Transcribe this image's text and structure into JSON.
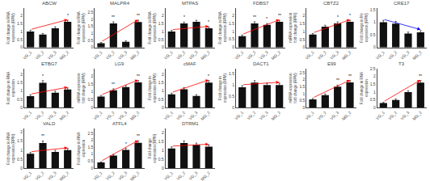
{
  "chart_data": [
    {
      "type": "bar",
      "title": "ABCW",
      "ylabel": "Fold change in RNA\nexpression (RPM)",
      "categories": [
        "VG_1",
        "VG_2",
        "VG_3",
        "MG_2"
      ],
      "values": [
        1.0,
        0.8,
        1.2,
        1.6
      ],
      "errors": [
        0.08,
        0.07,
        0.09,
        0.1
      ],
      "color": "#111111",
      "ylim": [
        0,
        2.465
      ],
      "yticks": [
        0,
        0.5,
        1,
        1.5,
        2
      ],
      "grid": false,
      "annotations": [
        {
          "category": "MG_2",
          "text": "*"
        }
      ],
      "trend": {
        "values": [
          1.12,
          1.74
        ],
        "color": "red"
      }
    },
    {
      "type": "bar",
      "title": "MALPR4",
      "ylabel": "Fold change in RNA\nexpression (RPM)",
      "categories": [
        "VG_1",
        "VG_2",
        "VG_3",
        "MG_2"
      ],
      "values": [
        0.3,
        1.7,
        0.4,
        1.8
      ],
      "errors": [
        0.05,
        0.12,
        0.06,
        0.13
      ],
      "color": "#111111",
      "ylim": [
        0,
        2.7985
      ],
      "yticks": [
        0,
        0.5,
        1,
        1.5,
        2,
        2.5
      ],
      "grid": false,
      "annotations": [
        {
          "category": "VG_2",
          "text": "**"
        },
        {
          "category": "MG_2",
          "text": "**"
        }
      ],
      "trend": {
        "values": [
          0.39,
          1.97
        ],
        "color": "red"
      }
    },
    {
      "type": "bar",
      "title": "MTPAS",
      "ylabel": "Fold change in RNA\nexpression (RPM)",
      "categories": [
        "VG_1",
        "VG_2",
        "VG_3",
        "MG_2"
      ],
      "values": [
        1.0,
        1.5,
        1.6,
        1.2
      ],
      "errors": [
        0.07,
        0.09,
        0.1,
        0.08
      ],
      "color": "#111111",
      "ylim": [
        0,
        2.465
      ],
      "yticks": [
        0,
        0.5,
        1,
        1.5,
        2
      ],
      "grid": false,
      "annotations": [
        {
          "category": "VG_2",
          "text": "*"
        },
        {
          "category": "MG_2",
          "text": "*"
        }
      ],
      "trend": {
        "values": [
          1.11,
          1.32
        ],
        "color": "red"
      }
    },
    {
      "type": "bar",
      "title": "FDBS7",
      "ylabel": "Fold change in RNA\nexpression (RPM)",
      "categories": [
        "VG_1",
        "VG_2",
        "VG_3",
        "MG_2"
      ],
      "values": [
        0.7,
        1.5,
        1.4,
        1.6
      ],
      "errors": [
        0.07,
        0.1,
        0.09,
        0.09
      ],
      "color": "#111111",
      "ylim": [
        0,
        2.4505
      ],
      "yticks": [
        0,
        0.5,
        1,
        1.5,
        2
      ],
      "grid": false,
      "annotations": [
        {
          "category": "VG_2",
          "text": "**"
        },
        {
          "category": "VG_3",
          "text": "*"
        },
        {
          "category": "MG_2",
          "text": "**"
        }
      ],
      "trend": {
        "values": [
          0.81,
          1.73
        ],
        "color": "red"
      }
    },
    {
      "type": "bar",
      "title": "CBTZ2",
      "ylabel": "miRNA expression\nfold change (RPM)",
      "categories": [
        "VG_1",
        "VG_2",
        "VG_3",
        "MG_2"
      ],
      "values": [
        0.8,
        1.3,
        1.5,
        1.6
      ],
      "errors": [
        0.07,
        0.09,
        0.1,
        0.1
      ],
      "color": "#111111",
      "ylim": [
        0,
        2.465
      ],
      "yticks": [
        0,
        0.5,
        1,
        1.5,
        2
      ],
      "grid": false,
      "annotations": [
        {
          "category": "VG_3",
          "text": "*"
        },
        {
          "category": "MG_2",
          "text": "*"
        }
      ],
      "trend": {
        "values": [
          0.91,
          1.74
        ],
        "color": "red"
      }
    },
    {
      "type": "bar",
      "title": "CRE17",
      "ylabel": "Fold change in Mc\nexpression (RPM)",
      "categories": [
        "VG_1",
        "VG_2",
        "VG_3",
        "MG_2"
      ],
      "values": [
        1.0,
        0.95,
        0.55,
        0.6
      ],
      "errors": [
        0.08,
        0.09,
        0.06,
        0.07
      ],
      "color": "#111111",
      "ylim": [
        0,
        1.566
      ],
      "yticks": [
        0,
        0.5,
        1,
        1.5
      ],
      "grid": false,
      "trend": {
        "values": [
          1.12,
          0.71
        ],
        "color": "blue"
      }
    },
    {
      "type": "bar",
      "title": "ETBG7",
      "ylabel": "Fold change in RNA\nexpression",
      "categories": [
        "VG_1",
        "VG_2",
        "VG_3",
        "MG_2"
      ],
      "values": [
        0.7,
        1.5,
        0.9,
        1.1
      ],
      "errors": [
        0.08,
        0.13,
        0.1,
        0.09
      ],
      "color": "#111111",
      "ylim": [
        0,
        2.3635
      ],
      "yticks": [
        0,
        0.5,
        1,
        1.5,
        2
      ],
      "grid": false,
      "annotations": [
        {
          "category": "VG_2",
          "text": "*"
        }
      ],
      "trend": {
        "values": [
          0.82,
          1.23
        ],
        "color": "red"
      }
    },
    {
      "type": "bar",
      "title": "LG9",
      "ylabel": "miRNA expression\nfold change (RPM)",
      "categories": [
        "VG_1",
        "VG_2",
        "VG_3",
        "MG_2"
      ],
      "values": [
        0.7,
        1.1,
        1.3,
        1.6
      ],
      "errors": [
        0.07,
        0.09,
        0.1,
        0.11
      ],
      "color": "#111111",
      "ylim": [
        0,
        2.4795
      ],
      "yticks": [
        0,
        0.5,
        1,
        1.5,
        2
      ],
      "grid": false,
      "annotations": [
        {
          "category": "VG_2",
          "text": "**"
        },
        {
          "category": "MG_2",
          "text": "**"
        }
      ],
      "trend": {
        "values": [
          0.81,
          1.75
        ],
        "color": "red"
      }
    },
    {
      "type": "bar",
      "title": "cMAF",
      "ylabel": "Fold change in\nexpression (RPM)",
      "categories": [
        "VG_1",
        "VG_2",
        "VG_3",
        "MG_2"
      ],
      "values": [
        0.8,
        1.1,
        0.7,
        1.5
      ],
      "errors": [
        0.07,
        0.1,
        0.08,
        0.12
      ],
      "color": "#111111",
      "ylim": [
        0,
        2.349
      ],
      "yticks": [
        0,
        0.5,
        1,
        1.5,
        2
      ],
      "grid": false,
      "annotations": [
        {
          "category": "MG_2",
          "text": "*"
        }
      ],
      "trend": {
        "values": [
          0.91,
          1.66
        ],
        "color": "red"
      }
    },
    {
      "type": "bar",
      "title": "DACT1",
      "ylabel": "Fold change in\nexpression (RPM)",
      "categories": [
        "VG_1",
        "VG_2",
        "VG_3",
        "MG_2"
      ],
      "values": [
        0.9,
        1.1,
        1.0,
        1.0
      ],
      "errors": [
        0.07,
        0.09,
        0.08,
        0.08
      ],
      "color": "#111111",
      "ylim": [
        0,
        1.7255
      ],
      "yticks": [
        0,
        0.5,
        1,
        1.5
      ],
      "grid": false,
      "trend": {
        "values": [
          1.01,
          1.12
        ],
        "color": "red"
      }
    },
    {
      "type": "bar",
      "title": "E99",
      "ylabel": "miRNA expression\nfold change (RPM)",
      "categories": [
        "VG_1",
        "VG_2",
        "VG_3",
        "MG_2"
      ],
      "values": [
        0.6,
        0.9,
        1.5,
        1.8
      ],
      "errors": [
        0.06,
        0.08,
        0.11,
        0.13
      ],
      "color": "#111111",
      "ylim": [
        0,
        2.7985
      ],
      "yticks": [
        0,
        0.5,
        1,
        1.5,
        2,
        2.5
      ],
      "grid": false,
      "annotations": [
        {
          "category": "VG_3",
          "text": "**"
        },
        {
          "category": "MG_2",
          "text": "**"
        }
      ],
      "trend": {
        "values": [
          0.7,
          1.97
        ],
        "color": "red"
      }
    },
    {
      "type": "bar",
      "title": "T3",
      "ylabel": "Fold change in RNA\nexpression",
      "categories": [
        "VG_1",
        "VG_2",
        "VG_3",
        "MG_2"
      ],
      "values": [
        0.3,
        0.5,
        1.0,
        1.6
      ],
      "errors": [
        0.04,
        0.06,
        0.09,
        0.13
      ],
      "color": "#111111",
      "ylim": [
        0,
        2.5085
      ],
      "yticks": [
        0,
        0.5,
        1,
        1.5,
        2,
        2.5
      ],
      "grid": false,
      "annotations": [
        {
          "category": "MG_2",
          "text": "**"
        }
      ],
      "trend": {
        "values": [
          0.38,
          1.77
        ],
        "color": "red"
      }
    },
    {
      "type": "bar",
      "title": "VALD",
      "ylabel": "Fold change in RNA\nexpression (RPM)",
      "categories": [
        "VG_1",
        "VG_2",
        "VG_3",
        "MG_2"
      ],
      "values": [
        0.8,
        1.4,
        0.9,
        1.0
      ],
      "errors": [
        0.07,
        0.11,
        0.08,
        0.09
      ],
      "color": "#111111",
      "ylim": [
        0,
        2.1895
      ],
      "yticks": [
        0,
        0.5,
        1,
        1.5,
        2
      ],
      "grid": false,
      "annotations": [
        {
          "category": "VG_2",
          "text": "**"
        }
      ],
      "trend": {
        "values": [
          0.91,
          1.13
        ],
        "color": "red"
      }
    },
    {
      "type": "bar",
      "title": "ATFL4",
      "ylabel": "Fold change in RNA\nexpression",
      "categories": [
        "VG_1",
        "VG_2",
        "VG_3",
        "MG_2"
      ],
      "values": [
        0.4,
        0.9,
        1.3,
        1.8
      ],
      "errors": [
        0.05,
        0.08,
        0.11,
        0.14
      ],
      "color": "#111111",
      "ylim": [
        0,
        2.813
      ],
      "yticks": [
        0,
        0.5,
        1,
        1.5,
        2,
        2.5
      ],
      "grid": false,
      "annotations": [
        {
          "category": "VG_3",
          "text": "*"
        },
        {
          "category": "MG_2",
          "text": "**"
        }
      ],
      "trend": {
        "values": [
          0.49,
          1.98
        ],
        "color": "red"
      }
    },
    {
      "type": "bar",
      "title": "DTRM1",
      "ylabel": "Fold change\nexpression (RPM)",
      "categories": [
        "VG_1",
        "VG_2",
        "VG_3",
        "MG_2"
      ],
      "values": [
        1.1,
        1.4,
        1.3,
        1.2
      ],
      "errors": [
        0.09,
        0.12,
        0.1,
        0.1
      ],
      "color": "#111111",
      "ylim": [
        0,
        2.204
      ],
      "yticks": [
        0,
        0.5,
        1,
        1.5,
        2
      ],
      "grid": false,
      "trend": {
        "values": [
          1.23,
          1.34
        ],
        "color": "red"
      }
    }
  ]
}
